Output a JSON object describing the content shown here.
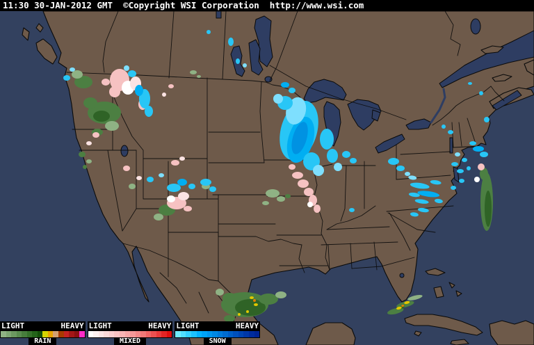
{
  "header": {
    "text": "11:30 30-JAN-2012 GMT  ©Copyright WSI Corporation  http://www.wsi.com"
  },
  "legend": {
    "groups": [
      {
        "name": "RAIN",
        "light": "LIGHT",
        "heavy": "HEAVY",
        "palette": [
          "#8fb284",
          "#7da572",
          "#6b9860",
          "#598b4e",
          "#477e3c",
          "#35712a",
          "#236419",
          "#145009",
          "#d6d600",
          "#e8a400",
          "#d4a070",
          "#a83a00",
          "#c42222",
          "#a41616",
          "#8a1010",
          "#fb2cc8"
        ]
      },
      {
        "name": "MIXED",
        "light": "LIGHT",
        "heavy": "HEAVY",
        "palette": [
          "#ffffff",
          "#fef2f2",
          "#fde6e6",
          "#fcdada",
          "#fbcece",
          "#fac2c2",
          "#f8b4b4",
          "#f6a6a6",
          "#f49898",
          "#f28888",
          "#f07878",
          "#ee6464",
          "#ec5050",
          "#e83a3a",
          "#e42424",
          "#e00e0e"
        ]
      },
      {
        "name": "SNOW",
        "light": "LIGHT",
        "heavy": "HEAVY",
        "palette": [
          "#70ecff",
          "#50deff",
          "#34d0ff",
          "#1cc2ff",
          "#04b2ff",
          "#00a4f8",
          "#0096ee",
          "#0088e4",
          "#007ada",
          "#006cd0",
          "#005ec6",
          "#0050bc",
          "#0044b2",
          "#0038a8",
          "#002c9e",
          "#002494"
        ]
      }
    ]
  },
  "map": {
    "colors": {
      "ocean": "#33415f",
      "lake": "#2e3d62",
      "land": "#6e5a4a",
      "border": "#0a0a0a",
      "rain_light": "#8fb284",
      "rain_mid": "#4c7f42",
      "rain_dark": "#2f6326",
      "rain_heavy_yellow": "#e0c800",
      "rain_heavy_orange": "#e08000",
      "mixed_light": "#fbe3e3",
      "mixed_mid": "#f6c2c2",
      "mixed_white": "#ffffff",
      "snow_pale": "#7edffe",
      "snow_cyan": "#28c6f6",
      "snow_bright": "#00aef2",
      "snow_deep": "#0092e2"
    },
    "precipitation_regions": [
      {
        "area": "Pacific Northwest / N Rockies",
        "types": [
          "rain",
          "mixed",
          "snow"
        ]
      },
      {
        "area": "Great Basin / Colorado",
        "types": [
          "mixed",
          "snow",
          "rain"
        ]
      },
      {
        "area": "Upper Midwest / Great Lakes",
        "types": [
          "snow",
          "mixed",
          "rain"
        ]
      },
      {
        "area": "Upstate New York / New England",
        "types": [
          "snow",
          "mixed"
        ]
      },
      {
        "area": "New England offshore",
        "types": [
          "rain",
          "mixed"
        ]
      },
      {
        "area": "South Texas / Gulf",
        "types": [
          "rain"
        ]
      },
      {
        "area": "Florida Straits / Bahamas",
        "types": [
          "rain"
        ]
      }
    ]
  }
}
